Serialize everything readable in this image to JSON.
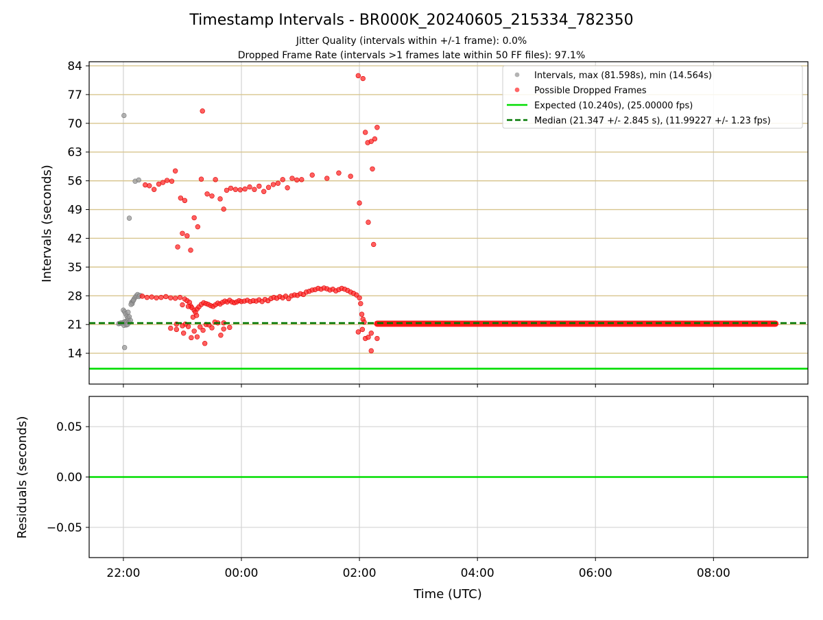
{
  "chart_data": [
    {
      "panel": "top",
      "type": "scatter",
      "title": "Timestamp Intervals - BR000K_20240605_215334_782350",
      "subtitle_lines": [
        "Jitter Quality (intervals within +/-1 frame): 0.0%",
        "Dropped Frame Rate (intervals >1 frames late within 50 FF files): 97.1%"
      ],
      "xlabel": "",
      "ylabel": "Intervals (seconds)",
      "xlim_hours": [
        -2.58,
        9.6
      ],
      "ylim": [
        6.5,
        85
      ],
      "yticks": [
        14,
        21,
        28,
        35,
        42,
        49,
        56,
        63,
        70,
        77,
        84
      ],
      "ytick_labels": [
        "14",
        "21",
        "28",
        "35",
        "42",
        "49",
        "56",
        "63",
        "70",
        "77",
        "84"
      ],
      "xticks_hours": [
        -2,
        0,
        2,
        4,
        6,
        8
      ],
      "grid": true,
      "legend_position": "top-right",
      "legend": [
        {
          "label": "Intervals, max (81.598s), min (14.564s)",
          "marker": "circle",
          "color": "#999999"
        },
        {
          "label": "Possible Dropped Frames",
          "marker": "circle",
          "color": "#ff3333"
        },
        {
          "label": "Expected (10.240s), (25.00000 fps)",
          "marker": "line",
          "color": "#00dd00"
        },
        {
          "label": "Median (21.347 +/- 2.845 s), (11.99227 +/- 1.23 fps)",
          "marker": "dashed-line",
          "color": "#007700"
        }
      ],
      "expected_line": 10.24,
      "median_line": 21.347,
      "series": [
        {
          "name": "Intervals, max (81.598s), min (14.564s)",
          "points": [
            [
              -2.08,
              21.2
            ],
            [
              -2.06,
              21.3
            ],
            [
              -2.04,
              21.4
            ],
            [
              -2.02,
              21.3
            ],
            [
              -2.0,
              21.5
            ],
            [
              -1.98,
              21.6
            ],
            [
              -1.96,
              21.8
            ],
            [
              -1.94,
              21.7
            ],
            [
              -1.92,
              22.1
            ],
            [
              -2.0,
              24.5
            ],
            [
              -1.98,
              24.1
            ],
            [
              -1.96,
              23.6
            ],
            [
              -1.94,
              23.0
            ],
            [
              -1.92,
              22.6
            ],
            [
              -1.9,
              22.9
            ],
            [
              -1.99,
              20.8
            ],
            [
              -1.95,
              20.9
            ],
            [
              -1.93,
              21.0
            ],
            [
              -1.92,
              24.0
            ],
            [
              -1.9,
              21.5
            ],
            [
              -1.88,
              22.0
            ],
            [
              -1.86,
              26.4
            ],
            [
              -1.84,
              26.7
            ],
            [
              -1.82,
              27.2
            ],
            [
              -1.8,
              27.6
            ],
            [
              -1.78,
              28.0
            ],
            [
              -1.76,
              28.3
            ],
            [
              -1.74,
              27.8
            ],
            [
              -1.72,
              28.1
            ],
            [
              -1.85,
              26.1
            ],
            [
              -1.83,
              26.9
            ],
            [
              -1.87,
              25.9
            ],
            [
              -1.99,
              71.9
            ],
            [
              -1.98,
              15.4
            ],
            [
              -1.9,
              46.9
            ],
            [
              -1.8,
              55.9
            ],
            [
              -1.74,
              56.2
            ]
          ]
        },
        {
          "name": "Possible Dropped Frames",
          "points": [
            [
              -1.68,
              27.9
            ],
            [
              -1.6,
              27.6
            ],
            [
              -1.52,
              27.7
            ],
            [
              -1.44,
              27.5
            ],
            [
              -1.36,
              27.6
            ],
            [
              -1.28,
              27.8
            ],
            [
              -1.2,
              27.5
            ],
            [
              -1.12,
              27.4
            ],
            [
              -1.04,
              27.6
            ],
            [
              -0.96,
              27.2
            ],
            [
              -0.92,
              26.8
            ],
            [
              -0.88,
              26.4
            ],
            [
              -0.86,
              25.5
            ],
            [
              -0.84,
              25.1
            ],
            [
              -0.8,
              24.5
            ],
            [
              -0.78,
              24.0
            ],
            [
              -0.75,
              24.8
            ],
            [
              -0.72,
              25.3
            ],
            [
              -0.68,
              25.9
            ],
            [
              -0.64,
              26.3
            ],
            [
              -0.6,
              26.1
            ],
            [
              -0.56,
              25.9
            ],
            [
              -0.52,
              25.6
            ],
            [
              -0.48,
              25.4
            ],
            [
              -0.44,
              25.8
            ],
            [
              -0.4,
              26.2
            ],
            [
              -0.36,
              26.0
            ],
            [
              -0.32,
              26.4
            ],
            [
              -0.28,
              26.7
            ],
            [
              -0.24,
              26.5
            ],
            [
              -0.2,
              26.9
            ],
            [
              -0.16,
              26.5
            ],
            [
              -0.12,
              26.3
            ],
            [
              -0.08,
              26.5
            ],
            [
              -0.04,
              26.8
            ],
            [
              0.0,
              26.6
            ],
            [
              0.05,
              26.7
            ],
            [
              0.1,
              26.9
            ],
            [
              0.15,
              26.6
            ],
            [
              0.2,
              26.8
            ],
            [
              0.25,
              26.7
            ],
            [
              0.3,
              27.0
            ],
            [
              0.35,
              26.6
            ],
            [
              0.4,
              27.1
            ],
            [
              0.45,
              26.8
            ],
            [
              0.5,
              27.3
            ],
            [
              0.55,
              27.6
            ],
            [
              0.6,
              27.4
            ],
            [
              0.65,
              27.8
            ],
            [
              0.7,
              27.5
            ],
            [
              0.75,
              27.9
            ],
            [
              0.8,
              27.3
            ],
            [
              0.85,
              28.0
            ],
            [
              0.9,
              28.2
            ],
            [
              0.95,
              28.1
            ],
            [
              1.0,
              28.5
            ],
            [
              1.05,
              28.3
            ],
            [
              1.1,
              28.9
            ],
            [
              1.15,
              29.1
            ],
            [
              1.2,
              29.4
            ],
            [
              1.25,
              29.5
            ],
            [
              1.3,
              29.8
            ],
            [
              1.35,
              29.6
            ],
            [
              1.4,
              29.9
            ],
            [
              1.45,
              29.7
            ],
            [
              1.5,
              29.4
            ],
            [
              1.55,
              29.6
            ],
            [
              1.6,
              29.2
            ],
            [
              1.65,
              29.5
            ],
            [
              1.7,
              29.8
            ],
            [
              1.75,
              29.6
            ],
            [
              1.8,
              29.3
            ],
            [
              1.85,
              28.9
            ],
            [
              1.9,
              28.6
            ],
            [
              1.95,
              28.2
            ],
            [
              2.0,
              27.5
            ],
            [
              2.02,
              26.1
            ],
            [
              2.04,
              23.5
            ],
            [
              2.06,
              22.3
            ],
            [
              2.08,
              21.6
            ],
            [
              -1.0,
              25.8
            ],
            [
              -0.9,
              25.4
            ],
            [
              -0.82,
              22.8
            ],
            [
              -0.76,
              23.2
            ],
            [
              -0.7,
              20.4
            ],
            [
              -0.6,
              21.0
            ],
            [
              -0.5,
              20.2
            ],
            [
              -0.4,
              21.4
            ],
            [
              -0.3,
              19.9
            ],
            [
              -0.2,
              20.3
            ],
            [
              -1.2,
              20.1
            ],
            [
              -1.1,
              19.8
            ],
            [
              -0.9,
              20.5
            ],
            [
              -0.8,
              19.4
            ],
            [
              -0.98,
              18.9
            ],
            [
              -0.95,
              21.1
            ],
            [
              -1.1,
              21.1
            ],
            [
              -1.0,
              20.7
            ],
            [
              -0.85,
              17.8
            ],
            [
              -0.75,
              18.0
            ],
            [
              -0.65,
              19.6
            ],
            [
              -0.55,
              20.9
            ],
            [
              -0.45,
              21.6
            ],
            [
              -0.35,
              18.4
            ],
            [
              -0.62,
              16.4
            ],
            [
              -0.3,
              21.4
            ],
            [
              1.98,
              19.2
            ],
            [
              2.05,
              19.8
            ],
            [
              2.1,
              17.6
            ],
            [
              2.15,
              17.9
            ],
            [
              2.2,
              18.9
            ],
            [
              2.3,
              17.6
            ],
            [
              2.2,
              14.6
            ],
            [
              -1.63,
              55.0
            ],
            [
              -1.56,
              54.8
            ],
            [
              -1.48,
              53.9
            ],
            [
              -1.4,
              55.2
            ],
            [
              -1.33,
              55.6
            ],
            [
              -1.26,
              56.1
            ],
            [
              -1.18,
              55.9
            ],
            [
              -1.12,
              58.4
            ],
            [
              -1.03,
              51.8
            ],
            [
              -0.96,
              51.2
            ],
            [
              -0.68,
              56.4
            ],
            [
              -0.58,
              52.8
            ],
            [
              -0.5,
              52.3
            ],
            [
              -0.44,
              56.3
            ],
            [
              -0.36,
              51.6
            ],
            [
              -0.3,
              49.1
            ],
            [
              -0.25,
              53.7
            ],
            [
              -0.18,
              54.2
            ],
            [
              -0.1,
              53.9
            ],
            [
              -0.02,
              53.8
            ],
            [
              0.06,
              54.0
            ],
            [
              0.14,
              54.5
            ],
            [
              0.22,
              53.9
            ],
            [
              0.3,
              54.7
            ],
            [
              0.38,
              53.4
            ],
            [
              0.46,
              54.4
            ],
            [
              0.54,
              55.1
            ],
            [
              0.62,
              55.4
            ],
            [
              0.7,
              56.3
            ],
            [
              0.78,
              54.3
            ],
            [
              0.86,
              56.6
            ],
            [
              0.94,
              56.2
            ],
            [
              1.02,
              56.3
            ],
            [
              1.2,
              57.4
            ],
            [
              1.45,
              56.6
            ],
            [
              1.65,
              57.9
            ],
            [
              1.85,
              57.1
            ],
            [
              2.0,
              50.6
            ],
            [
              -1.08,
              39.9
            ],
            [
              -1.0,
              43.2
            ],
            [
              -0.92,
              42.6
            ],
            [
              -0.86,
              39.1
            ],
            [
              -0.8,
              47.0
            ],
            [
              -0.74,
              44.8
            ],
            [
              -0.66,
              73.0
            ],
            [
              1.98,
              81.6
            ],
            [
              2.06,
              80.9
            ],
            [
              2.1,
              67.8
            ],
            [
              2.14,
              65.3
            ],
            [
              2.2,
              65.6
            ],
            [
              2.26,
              66.2
            ],
            [
              2.3,
              69.0
            ],
            [
              2.22,
              58.9
            ],
            [
              2.15,
              45.9
            ],
            [
              2.24,
              40.5
            ]
          ]
        }
      ],
      "dense_run": {
        "x_start_hours": 2.3,
        "x_end_hours": 9.05,
        "y": 21.2,
        "color": "#ff0000"
      }
    },
    {
      "panel": "bottom",
      "type": "line",
      "xlabel": "Time (UTC)",
      "ylabel": "Residuals (seconds)",
      "xlim_hours": [
        -2.58,
        9.6
      ],
      "ylim": [
        -0.08,
        0.08
      ],
      "yticks": [
        0.05,
        0.0,
        -0.05
      ],
      "ytick_labels": [
        "0.05",
        "0.00",
        "−0.05"
      ],
      "xticks_hours": [
        -2,
        0,
        2,
        4,
        6,
        8
      ],
      "xtick_labels": [
        "22:00",
        "00:00",
        "02:00",
        "04:00",
        "06:00",
        "08:00"
      ],
      "grid": true,
      "series": [
        {
          "name": "",
          "color": "#00dd00",
          "x": [
            -2.58,
            9.6
          ],
          "y": [
            0.0,
            0.0
          ]
        }
      ]
    }
  ]
}
